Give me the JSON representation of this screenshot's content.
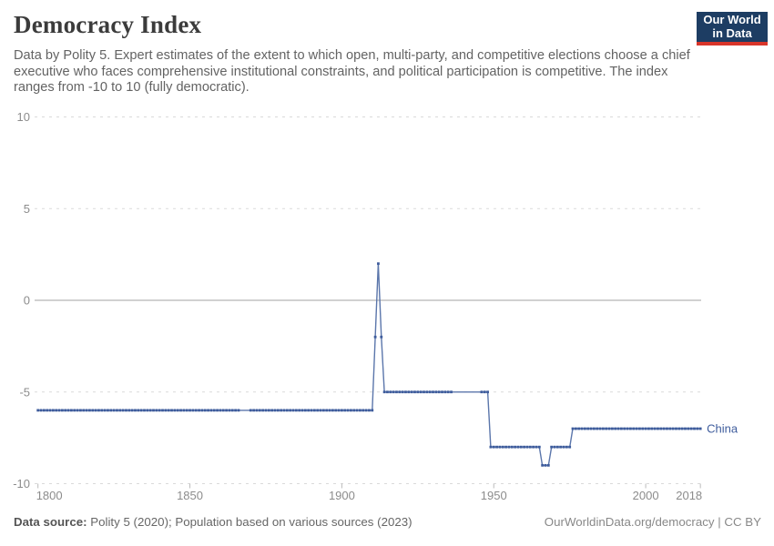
{
  "header": {
    "title": "Democracy Index",
    "subtitle": "Data by Polity 5. Expert estimates of the extent to which open, multi-party, and competitive elections choose a chief executive who faces comprehensive institutional constraints, and political participation is competitive. The index ranges from -10 to 10 (fully democratic).",
    "logo": {
      "line1": "Our World",
      "line2": "in Data",
      "bg_color": "#1d3d63",
      "accent_color": "#d8352a"
    }
  },
  "chart_data": {
    "type": "line",
    "title": "Democracy Index",
    "xlabel": "",
    "ylabel": "",
    "xlim": [
      1800,
      2018
    ],
    "ylim": [
      -10,
      10
    ],
    "x_ticks": [
      1800,
      1850,
      1900,
      1950,
      2000,
      2018
    ],
    "y_ticks": [
      10,
      5,
      0,
      -5,
      -10
    ],
    "grid": "dashed horizontal, solid zero line",
    "legend_position": "end-of-line label",
    "series": [
      {
        "name": "China",
        "color": "#5b76ab",
        "marker_color": "#3e5c9c",
        "segments": [
          [
            1800,
            1910,
            -6
          ],
          [
            1911,
            1911,
            -2
          ],
          [
            1912,
            1912,
            2
          ],
          [
            1913,
            1913,
            -2
          ],
          [
            1914,
            1948,
            -5
          ],
          [
            1949,
            1965,
            -8
          ],
          [
            1966,
            1968,
            -9
          ],
          [
            1969,
            1975,
            -8
          ],
          [
            1976,
            2018,
            -7
          ]
        ],
        "marker_gaps": [
          [
            1867,
            1869
          ],
          [
            1937,
            1945
          ]
        ]
      }
    ],
    "colors": {
      "grid": "#dadada",
      "zero_line": "#a3a3a3",
      "tick_label": "#8c8c8c"
    }
  },
  "footer": {
    "source_label": "Data source:",
    "source_text": " Polity 5 (2020); Population based on various sources (2023)",
    "right_text": "OurWorldinData.org/democracy | CC BY"
  }
}
